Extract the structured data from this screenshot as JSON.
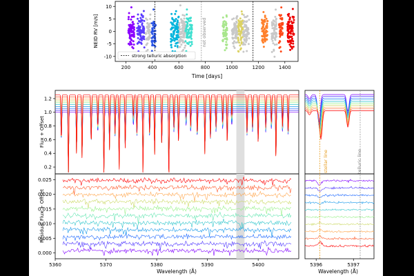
{
  "chart_data": [
    {
      "type": "scatter",
      "xlabel": "Time [days]",
      "ylabel": "NEID RV [m/s]",
      "xlim": [
        120,
        1500
      ],
      "ylim": [
        -12,
        12
      ],
      "xticks": [
        200,
        400,
        600,
        800,
        1000,
        1200,
        1400
      ],
      "yticks": [
        -10,
        -5,
        0,
        5,
        10
      ],
      "legend": {
        "placement": "lower-left",
        "entries": [
          "strong telluric absorption"
        ]
      },
      "annotation": "not observed",
      "vlines": [
        {
          "x": 420,
          "style": "dashed",
          "color": "#000000"
        },
        {
          "x": 770,
          "style": "dashed",
          "color": "#999999"
        },
        {
          "x": 1160,
          "style": "dashed",
          "color": "#000000"
        }
      ],
      "clusters": [
        {
          "x_start": 220,
          "x_end": 265,
          "color": "#8b00ff"
        },
        {
          "x_start": 285,
          "x_end": 340,
          "color": "#5a3cff"
        },
        {
          "x_start": 350,
          "x_end": 385,
          "color": "#c8c8c8"
        },
        {
          "x_start": 395,
          "x_end": 425,
          "color": "#2a55e6"
        },
        {
          "x_start": 540,
          "x_end": 600,
          "color": "#00b4dc"
        },
        {
          "x_start": 600,
          "x_end": 650,
          "color": "#c8c8c8"
        },
        {
          "x_start": 650,
          "x_end": 700,
          "color": "#40e0d0"
        },
        {
          "x_start": 930,
          "x_end": 965,
          "color": "#a8e68c"
        },
        {
          "x_start": 1000,
          "x_end": 1045,
          "color": "#c8c8c8"
        },
        {
          "x_start": 1045,
          "x_end": 1085,
          "color": "#dcd264"
        },
        {
          "x_start": 1085,
          "x_end": 1130,
          "color": "#c8c8c8"
        },
        {
          "x_start": 1225,
          "x_end": 1270,
          "color": "#ff7f2a"
        },
        {
          "x_start": 1300,
          "x_end": 1340,
          "color": "#c8c8c8"
        },
        {
          "x_start": 1355,
          "x_end": 1385,
          "color": "#ff4a1a"
        },
        {
          "x_start": 1420,
          "x_end": 1470,
          "color": "#ee0000"
        }
      ]
    },
    {
      "type": "line",
      "ylabel": "Flux + Offset",
      "xlim": [
        5360,
        5408
      ],
      "ylim": [
        0.1,
        1.32
      ],
      "yticks": [
        0.2,
        0.4,
        0.6,
        0.8,
        1.0,
        1.2
      ],
      "n_series": 10,
      "shaded_band": [
        5395.7,
        5397.3
      ],
      "lines": [
        {
          "center": 5361.2,
          "depth": 0.42
        },
        {
          "center": 5362.6,
          "depth": 0.85
        },
        {
          "center": 5364.2,
          "depth": 0.55
        },
        {
          "center": 5365.3,
          "depth": 0.6
        },
        {
          "center": 5367.1,
          "depth": 0.45
        },
        {
          "center": 5368.4,
          "depth": 0.3
        },
        {
          "center": 5369.6,
          "depth": 0.85
        },
        {
          "center": 5370.7,
          "depth": 0.5
        },
        {
          "center": 5371.8,
          "depth": 0.35
        },
        {
          "center": 5372.6,
          "depth": 0.7
        },
        {
          "center": 5373.8,
          "depth": 0.5
        },
        {
          "center": 5375.4,
          "depth": 0.2
        },
        {
          "center": 5376.1,
          "depth": 0.35
        },
        {
          "center": 5377.3,
          "depth": 0.75
        },
        {
          "center": 5378.6,
          "depth": 0.35
        },
        {
          "center": 5379.6,
          "depth": 0.55
        },
        {
          "center": 5381.0,
          "depth": 0.45
        },
        {
          "center": 5382.4,
          "depth": 0.85
        },
        {
          "center": 5383.4,
          "depth": 0.3
        },
        {
          "center": 5384.3,
          "depth": 0.45
        },
        {
          "center": 5385.8,
          "depth": 0.2
        },
        {
          "center": 5386.7,
          "depth": 0.3
        },
        {
          "center": 5388.0,
          "depth": 0.35
        },
        {
          "center": 5389.5,
          "depth": 0.55
        },
        {
          "center": 5390.6,
          "depth": 0.4
        },
        {
          "center": 5391.7,
          "depth": 0.3
        },
        {
          "center": 5393.0,
          "depth": 0.25
        },
        {
          "center": 5393.9,
          "depth": 0.45
        },
        {
          "center": 5394.8,
          "depth": 0.2
        },
        {
          "center": 5397.8,
          "depth": 0.35
        },
        {
          "center": 5398.9,
          "depth": 0.3
        },
        {
          "center": 5400.0,
          "depth": 0.45
        },
        {
          "center": 5401.5,
          "depth": 0.3
        },
        {
          "center": 5402.6,
          "depth": 0.25
        },
        {
          "center": 5403.5,
          "depth": 0.6
        },
        {
          "center": 5404.8,
          "depth": 0.3
        },
        {
          "center": 5405.9,
          "depth": 0.35
        }
      ]
    },
    {
      "type": "line",
      "ylabel": "Residual Flux + Offset",
      "xlabel": "Wavelength (Å)",
      "xlim": [
        5360,
        5408
      ],
      "ylim": [
        -0.002,
        0.027
      ],
      "xticks": [
        5360,
        5370,
        5380,
        5390,
        5400
      ],
      "yticks": [
        0.0,
        0.005,
        0.01,
        0.015,
        0.02,
        0.025
      ],
      "n_series": 10
    },
    {
      "type": "line",
      "xlabel": "Wavelength (Å)",
      "xlim": [
        5395.7,
        5397.55
      ],
      "xticks": [
        5396,
        5397
      ],
      "annotations": [
        "stellar line",
        "telluric line"
      ],
      "stellar_line": 5396.1,
      "telluric_line": 5397.18
    }
  ],
  "labels": {
    "rv_ylabel": "NEID RV [m/s]",
    "rv_xlabel": "Time [days]",
    "legend_text": "strong telluric absorption",
    "not_observed": "not observed",
    "flux_ylabel": "Flux + Offset",
    "resid_ylabel": "Residual Flux + Offset",
    "wave_xlabel": "Wavelength (Å)",
    "stellar_line": "stellar line",
    "telluric_line": "telluric line"
  },
  "colors": {
    "rainbow": [
      "#8000ff",
      "#4b33ff",
      "#1a66ff",
      "#1999ea",
      "#33c6cc",
      "#66e6b3",
      "#99f18a",
      "#ccd966",
      "#ffa64d",
      "#ff5a2a",
      "#ff0000"
    ]
  }
}
